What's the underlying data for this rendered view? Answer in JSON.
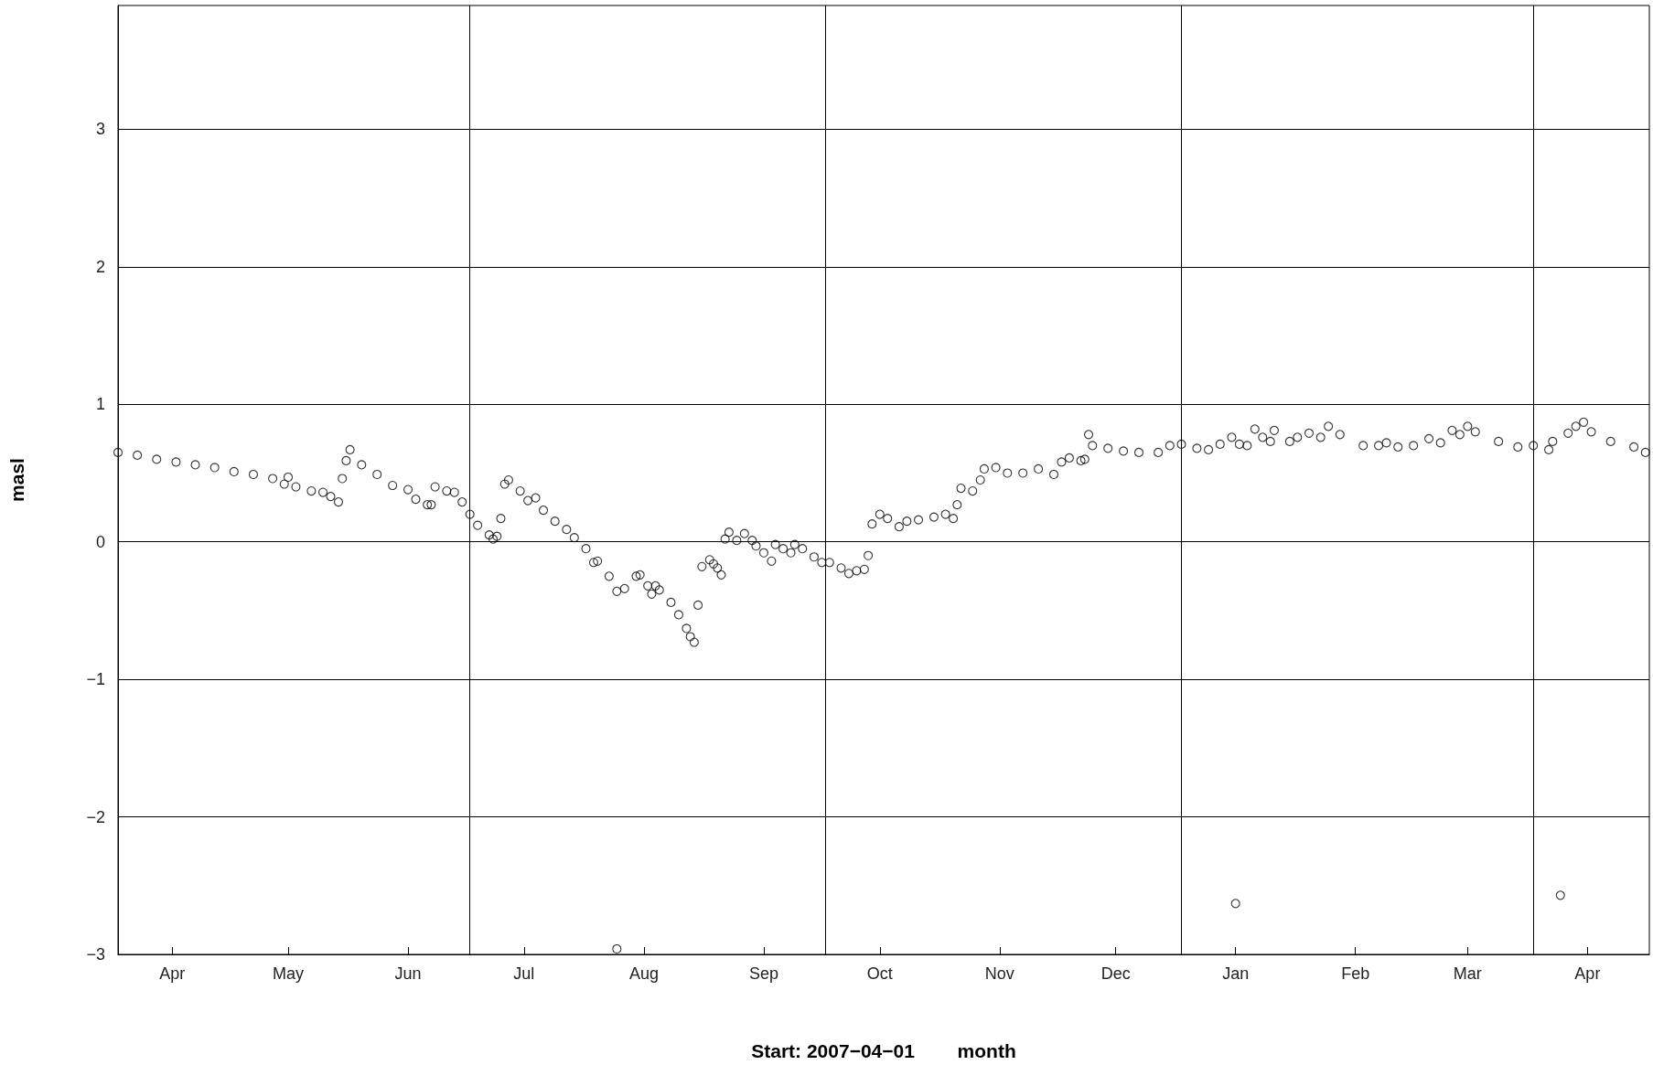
{
  "chart_data": {
    "type": "scatter",
    "xlabel": "Start: 2007−04−01        month",
    "ylabel": "masl",
    "xlim": [
      "2007-04-01",
      "2008-05-01"
    ],
    "xticks": [
      {
        "value": "2007-04-15",
        "label": "Apr"
      },
      {
        "value": "2007-05-15",
        "label": "May"
      },
      {
        "value": "2007-06-15",
        "label": "Jun"
      },
      {
        "value": "2007-07-15",
        "label": "Jul"
      },
      {
        "value": "2007-08-15",
        "label": "Aug"
      },
      {
        "value": "2007-09-15",
        "label": "Sep"
      },
      {
        "value": "2007-10-15",
        "label": "Oct"
      },
      {
        "value": "2007-11-15",
        "label": "Nov"
      },
      {
        "value": "2007-12-15",
        "label": "Dec"
      },
      {
        "value": "2008-01-15",
        "label": "Jan"
      },
      {
        "value": "2008-02-15",
        "label": "Feb"
      },
      {
        "value": "2008-03-15",
        "label": "Mar"
      },
      {
        "value": "2008-04-15",
        "label": "Apr"
      }
    ],
    "ylim": [
      -3,
      3.9
    ],
    "yticks": [
      -3,
      -2,
      -1,
      0,
      1,
      2,
      3
    ],
    "grid": "y",
    "marker": "circle",
    "ref_lines": [
      {
        "axis": "x",
        "value": "2007-07-01",
        "color": "#000000"
      },
      {
        "axis": "x",
        "value": "2007-10-01",
        "color": "#000000"
      },
      {
        "axis": "x",
        "value": "2008-01-01",
        "color": "#000000"
      },
      {
        "axis": "x",
        "value": "2008-04-01",
        "color": "#000000"
      }
    ],
    "series": [
      {
        "color": "#000000",
        "x": [
          "2007-04-01",
          "2007-04-06",
          "2007-04-11",
          "2007-04-16",
          "2007-04-21",
          "2007-04-26",
          "2007-05-01",
          "2007-05-06",
          "2007-05-11",
          "2007-05-14",
          "2007-05-15",
          "2007-05-17",
          "2007-05-21",
          "2007-05-24",
          "2007-05-26",
          "2007-05-28",
          "2007-05-29",
          "2007-05-30",
          "2007-05-31",
          "2007-06-03",
          "2007-06-07",
          "2007-06-11",
          "2007-06-15",
          "2007-06-17",
          "2007-06-20",
          "2007-06-21",
          "2007-06-22",
          "2007-06-25",
          "2007-06-27",
          "2007-06-29",
          "2007-07-01",
          "2007-07-03",
          "2007-07-06",
          "2007-07-07",
          "2007-07-08",
          "2007-07-09",
          "2007-07-10",
          "2007-07-11",
          "2007-07-14",
          "2007-07-16",
          "2007-07-18",
          "2007-07-20",
          "2007-07-23",
          "2007-07-26",
          "2007-07-28",
          "2007-07-31",
          "2007-08-02",
          "2007-08-03",
          "2007-08-06",
          "2007-08-08",
          "2007-08-08",
          "2007-08-10",
          "2007-08-13",
          "2007-08-14",
          "2007-08-16",
          "2007-08-17",
          "2007-08-18",
          "2007-08-19",
          "2007-08-22",
          "2007-08-24",
          "2007-08-26",
          "2007-08-27",
          "2007-08-28",
          "2007-08-29",
          "2007-08-30",
          "2007-09-01",
          "2007-09-02",
          "2007-09-03",
          "2007-09-04",
          "2007-09-05",
          "2007-09-06",
          "2007-09-08",
          "2007-09-10",
          "2007-09-12",
          "2007-09-13",
          "2007-09-15",
          "2007-09-17",
          "2007-09-18",
          "2007-09-20",
          "2007-09-22",
          "2007-09-23",
          "2007-09-25",
          "2007-09-28",
          "2007-09-30",
          "2007-10-02",
          "2007-10-05",
          "2007-10-07",
          "2007-10-09",
          "2007-10-11",
          "2007-10-12",
          "2007-10-13",
          "2007-10-15",
          "2007-10-17",
          "2007-10-20",
          "2007-10-22",
          "2007-10-25",
          "2007-10-29",
          "2007-11-01",
          "2007-11-03",
          "2007-11-04",
          "2007-11-05",
          "2007-11-08",
          "2007-11-10",
          "2007-11-11",
          "2007-11-14",
          "2007-11-17",
          "2007-11-21",
          "2007-11-25",
          "2007-11-29",
          "2007-12-01",
          "2007-12-03",
          "2007-12-06",
          "2007-12-07",
          "2007-12-08",
          "2007-12-09",
          "2007-12-13",
          "2007-12-17",
          "2007-12-21",
          "2007-12-26",
          "2007-12-29",
          "2008-01-01",
          "2008-01-05",
          "2008-01-08",
          "2008-01-11",
          "2008-01-14",
          "2008-01-15",
          "2008-01-16",
          "2008-01-18",
          "2008-01-20",
          "2008-01-22",
          "2008-01-24",
          "2008-01-25",
          "2008-01-29",
          "2008-01-31",
          "2008-02-03",
          "2008-02-06",
          "2008-02-08",
          "2008-02-11",
          "2008-02-17",
          "2008-02-21",
          "2008-02-23",
          "2008-02-26",
          "2008-03-01",
          "2008-03-05",
          "2008-03-08",
          "2008-03-11",
          "2008-03-13",
          "2008-03-15",
          "2008-03-17",
          "2008-03-23",
          "2008-03-28",
          "2008-04-01",
          "2008-04-05",
          "2008-04-06",
          "2008-04-08",
          "2008-04-10",
          "2008-04-12",
          "2008-04-14",
          "2008-04-16",
          "2008-04-21",
          "2008-04-27",
          "2008-04-30"
        ],
        "values": [
          0.65,
          0.63,
          0.6,
          0.58,
          0.56,
          0.54,
          0.51,
          0.49,
          0.46,
          0.42,
          0.47,
          0.4,
          0.37,
          0.36,
          0.33,
          0.29,
          0.46,
          0.59,
          0.67,
          0.56,
          0.49,
          0.41,
          0.38,
          0.31,
          0.27,
          0.27,
          0.4,
          0.37,
          0.36,
          0.29,
          0.2,
          0.12,
          0.05,
          0.02,
          0.04,
          0.17,
          0.42,
          0.45,
          0.37,
          0.3,
          0.32,
          0.23,
          0.15,
          0.09,
          0.03,
          -0.05,
          -0.15,
          -0.14,
          -0.25,
          -0.36,
          -2.96,
          -0.34,
          -0.25,
          -0.24,
          -0.32,
          -0.38,
          -0.32,
          -0.35,
          -0.44,
          -0.53,
          -0.63,
          -0.69,
          -0.73,
          -0.46,
          -0.18,
          -0.13,
          -0.16,
          -0.19,
          -0.24,
          0.02,
          0.07,
          0.01,
          0.06,
          0.01,
          -0.03,
          -0.08,
          -0.14,
          -0.02,
          -0.05,
          -0.08,
          -0.02,
          -0.05,
          -0.11,
          -0.15,
          -0.15,
          -0.19,
          -0.23,
          -0.21,
          -0.2,
          -0.1,
          0.13,
          0.2,
          0.17,
          0.11,
          0.15,
          0.16,
          0.18,
          0.2,
          0.17,
          0.27,
          0.39,
          0.37,
          0.45,
          0.53,
          0.54,
          0.5,
          0.5,
          0.53,
          0.49,
          0.58,
          0.61,
          0.59,
          0.6,
          0.78,
          0.7,
          0.68,
          0.66,
          0.65,
          0.65,
          0.7,
          0.71,
          0.68,
          0.67,
          0.71,
          0.76,
          -2.63,
          0.71,
          0.7,
          0.82,
          0.76,
          0.73,
          0.81,
          0.73,
          0.76,
          0.79,
          0.76,
          0.84,
          0.78,
          0.7,
          0.7,
          0.72,
          0.69,
          0.7,
          0.75,
          0.72,
          0.81,
          0.78,
          0.84,
          0.8,
          0.73,
          0.69,
          0.7,
          0.67,
          0.73,
          -2.57,
          0.79,
          0.84,
          0.87,
          0.8,
          0.73,
          0.69,
          0.65
        ]
      }
    ]
  }
}
